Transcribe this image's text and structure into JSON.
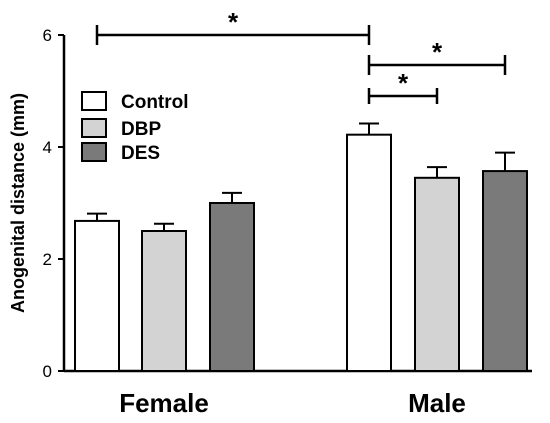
{
  "chart_data": {
    "type": "bar",
    "categories": [
      "Female",
      "Male"
    ],
    "series": [
      {
        "name": "Control",
        "color": "#ffffff",
        "values": [
          2.68,
          4.22
        ],
        "errors": [
          0.13,
          0.2
        ]
      },
      {
        "name": "DBP",
        "color": "#d3d3d3",
        "values": [
          2.5,
          3.45
        ],
        "errors": [
          0.13,
          0.19
        ]
      },
      {
        "name": "DES",
        "color": "#7a7a7a",
        "values": [
          3.0,
          3.57
        ],
        "errors": [
          0.18,
          0.33
        ]
      }
    ],
    "ylabel": "Anogenital distance (mm)",
    "xlabel": "",
    "title": "",
    "ylim": [
      0,
      6
    ],
    "yticks": [
      0,
      2,
      4,
      6
    ],
    "grid": false,
    "legend_position": "top-left",
    "significance": [
      {
        "from": "Female Control",
        "to": "Male Control",
        "label": "*"
      },
      {
        "from": "Male Control",
        "to": "Male DES",
        "label": "*"
      },
      {
        "from": "Male Control",
        "to": "Male DBP",
        "label": "*"
      }
    ]
  }
}
